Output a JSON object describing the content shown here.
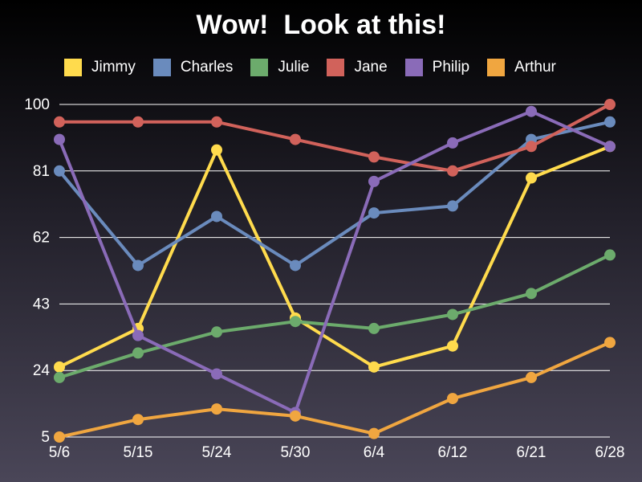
{
  "chart_data": {
    "type": "line",
    "title": "Wow!  Look at this!",
    "categories": [
      "5/6",
      "5/15",
      "5/24",
      "5/30",
      "6/4",
      "6/12",
      "6/21",
      "6/28"
    ],
    "ylim": [
      5,
      100
    ],
    "yticks": [
      5,
      24,
      43,
      62,
      81,
      100
    ],
    "grid": true,
    "legend_position": "top",
    "series": [
      {
        "name": "Jimmy",
        "color": "#ffdb4d",
        "values": [
          25,
          36,
          87,
          39,
          25,
          31,
          79,
          88
        ]
      },
      {
        "name": "Charles",
        "color": "#6a8bbd",
        "values": [
          81,
          54,
          68,
          54,
          69,
          71,
          90,
          95
        ]
      },
      {
        "name": "Julie",
        "color": "#6cab6c",
        "values": [
          22,
          29,
          35,
          38,
          36,
          40,
          46,
          57
        ]
      },
      {
        "name": "Jane",
        "color": "#d1625b",
        "values": [
          95,
          95,
          95,
          90,
          85,
          81,
          88,
          100
        ]
      },
      {
        "name": "Philip",
        "color": "#8a6bb8",
        "values": [
          90,
          34,
          23,
          12,
          78,
          89,
          98,
          88
        ]
      },
      {
        "name": "Arthur",
        "color": "#f0a640",
        "values": [
          5,
          10,
          13,
          11,
          6,
          16,
          22,
          32
        ]
      }
    ]
  }
}
